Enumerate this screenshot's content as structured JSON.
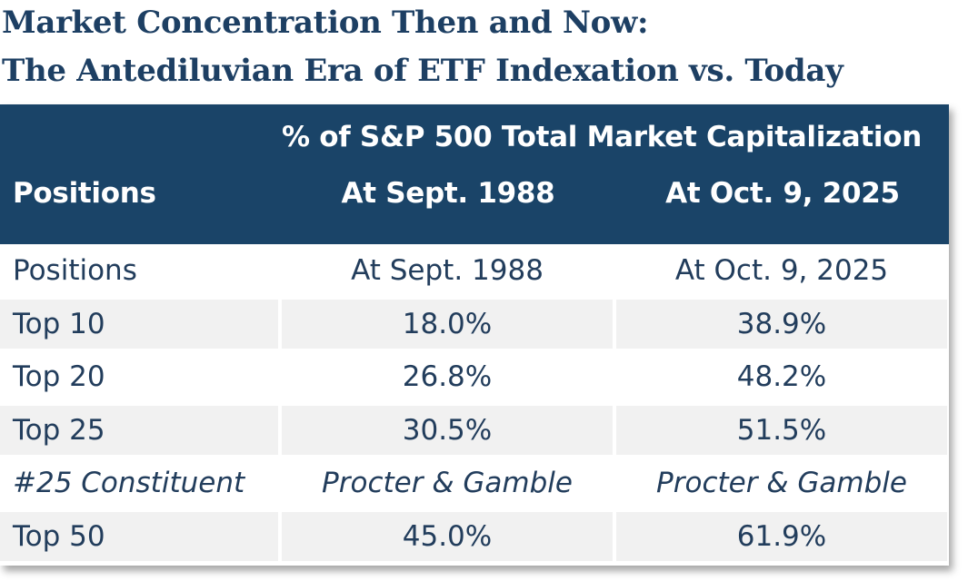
{
  "title": {
    "line1": "Market Concentration Then and Now:",
    "line2": "The Antediluvian Era of ETF Indexation vs. Today"
  },
  "table": {
    "super_header": "% of S&P 500 Total Market Capitalization",
    "headers": [
      "Positions",
      "At Sept. 1988",
      "At Oct. 9, 2025"
    ],
    "rows": [
      [
        "Positions",
        "At Sept. 1988",
        "At Oct. 9, 2025"
      ],
      [
        "Top 10",
        "18.0%",
        "38.9%"
      ],
      [
        "Top 20",
        "26.8%",
        "48.2%"
      ],
      [
        "Top 25",
        "30.5%",
        "51.5%"
      ],
      [
        "#25 Constituent",
        "Procter & Gamble",
        "Procter & Gamble"
      ],
      [
        "Top 50",
        "45.0%",
        "61.9%"
      ]
    ]
  },
  "colors": {
    "title": "#1d3f63",
    "header_bg": "#1a4468",
    "header_text": "#ffffff",
    "row_shade": "#f1f1f1",
    "body_text": "#223d5c"
  }
}
